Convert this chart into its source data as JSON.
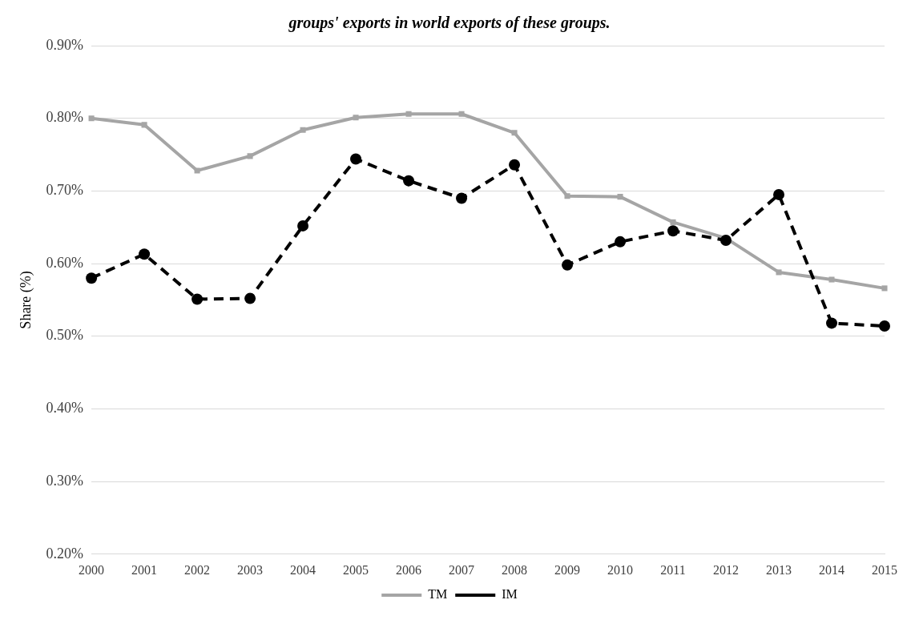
{
  "chart_data": {
    "type": "line",
    "title": "groups' exports in world exports of these groups.",
    "ylabel": "Share (%)",
    "categories": [
      "2000",
      "2001",
      "2002",
      "2003",
      "2004",
      "2005",
      "2006",
      "2007",
      "2008",
      "2009",
      "2010",
      "2011",
      "2012",
      "2013",
      "2014",
      "2015"
    ],
    "series": [
      {
        "name": "TM",
        "color": "#a5a5a5",
        "marker": "square",
        "line_style": "solid",
        "values": [
          0.8,
          0.791,
          0.728,
          0.748,
          0.784,
          0.801,
          0.806,
          0.806,
          0.78,
          0.693,
          0.692,
          0.657,
          0.635,
          0.588,
          0.578,
          0.566
        ]
      },
      {
        "name": "IM",
        "color": "#000000",
        "marker": "circle",
        "line_style": "dashed",
        "values": [
          0.58,
          0.613,
          0.551,
          0.552,
          0.652,
          0.744,
          0.714,
          0.69,
          0.736,
          0.598,
          0.63,
          0.645,
          0.632,
          0.695,
          0.518,
          0.514
        ]
      }
    ],
    "ylim": [
      0.2,
      0.9
    ],
    "yticks": [
      {
        "value": 0.2,
        "label": "0.20%"
      },
      {
        "value": 0.3,
        "label": "0.30%"
      },
      {
        "value": 0.4,
        "label": "0.40%"
      },
      {
        "value": 0.5,
        "label": "0.50%"
      },
      {
        "value": 0.6,
        "label": "0.60%"
      },
      {
        "value": 0.7,
        "label": "0.70%"
      },
      {
        "value": 0.8,
        "label": "0.80%"
      },
      {
        "value": 0.9,
        "label": "0.90%"
      }
    ],
    "grid": "y",
    "legend": "bottom"
  }
}
